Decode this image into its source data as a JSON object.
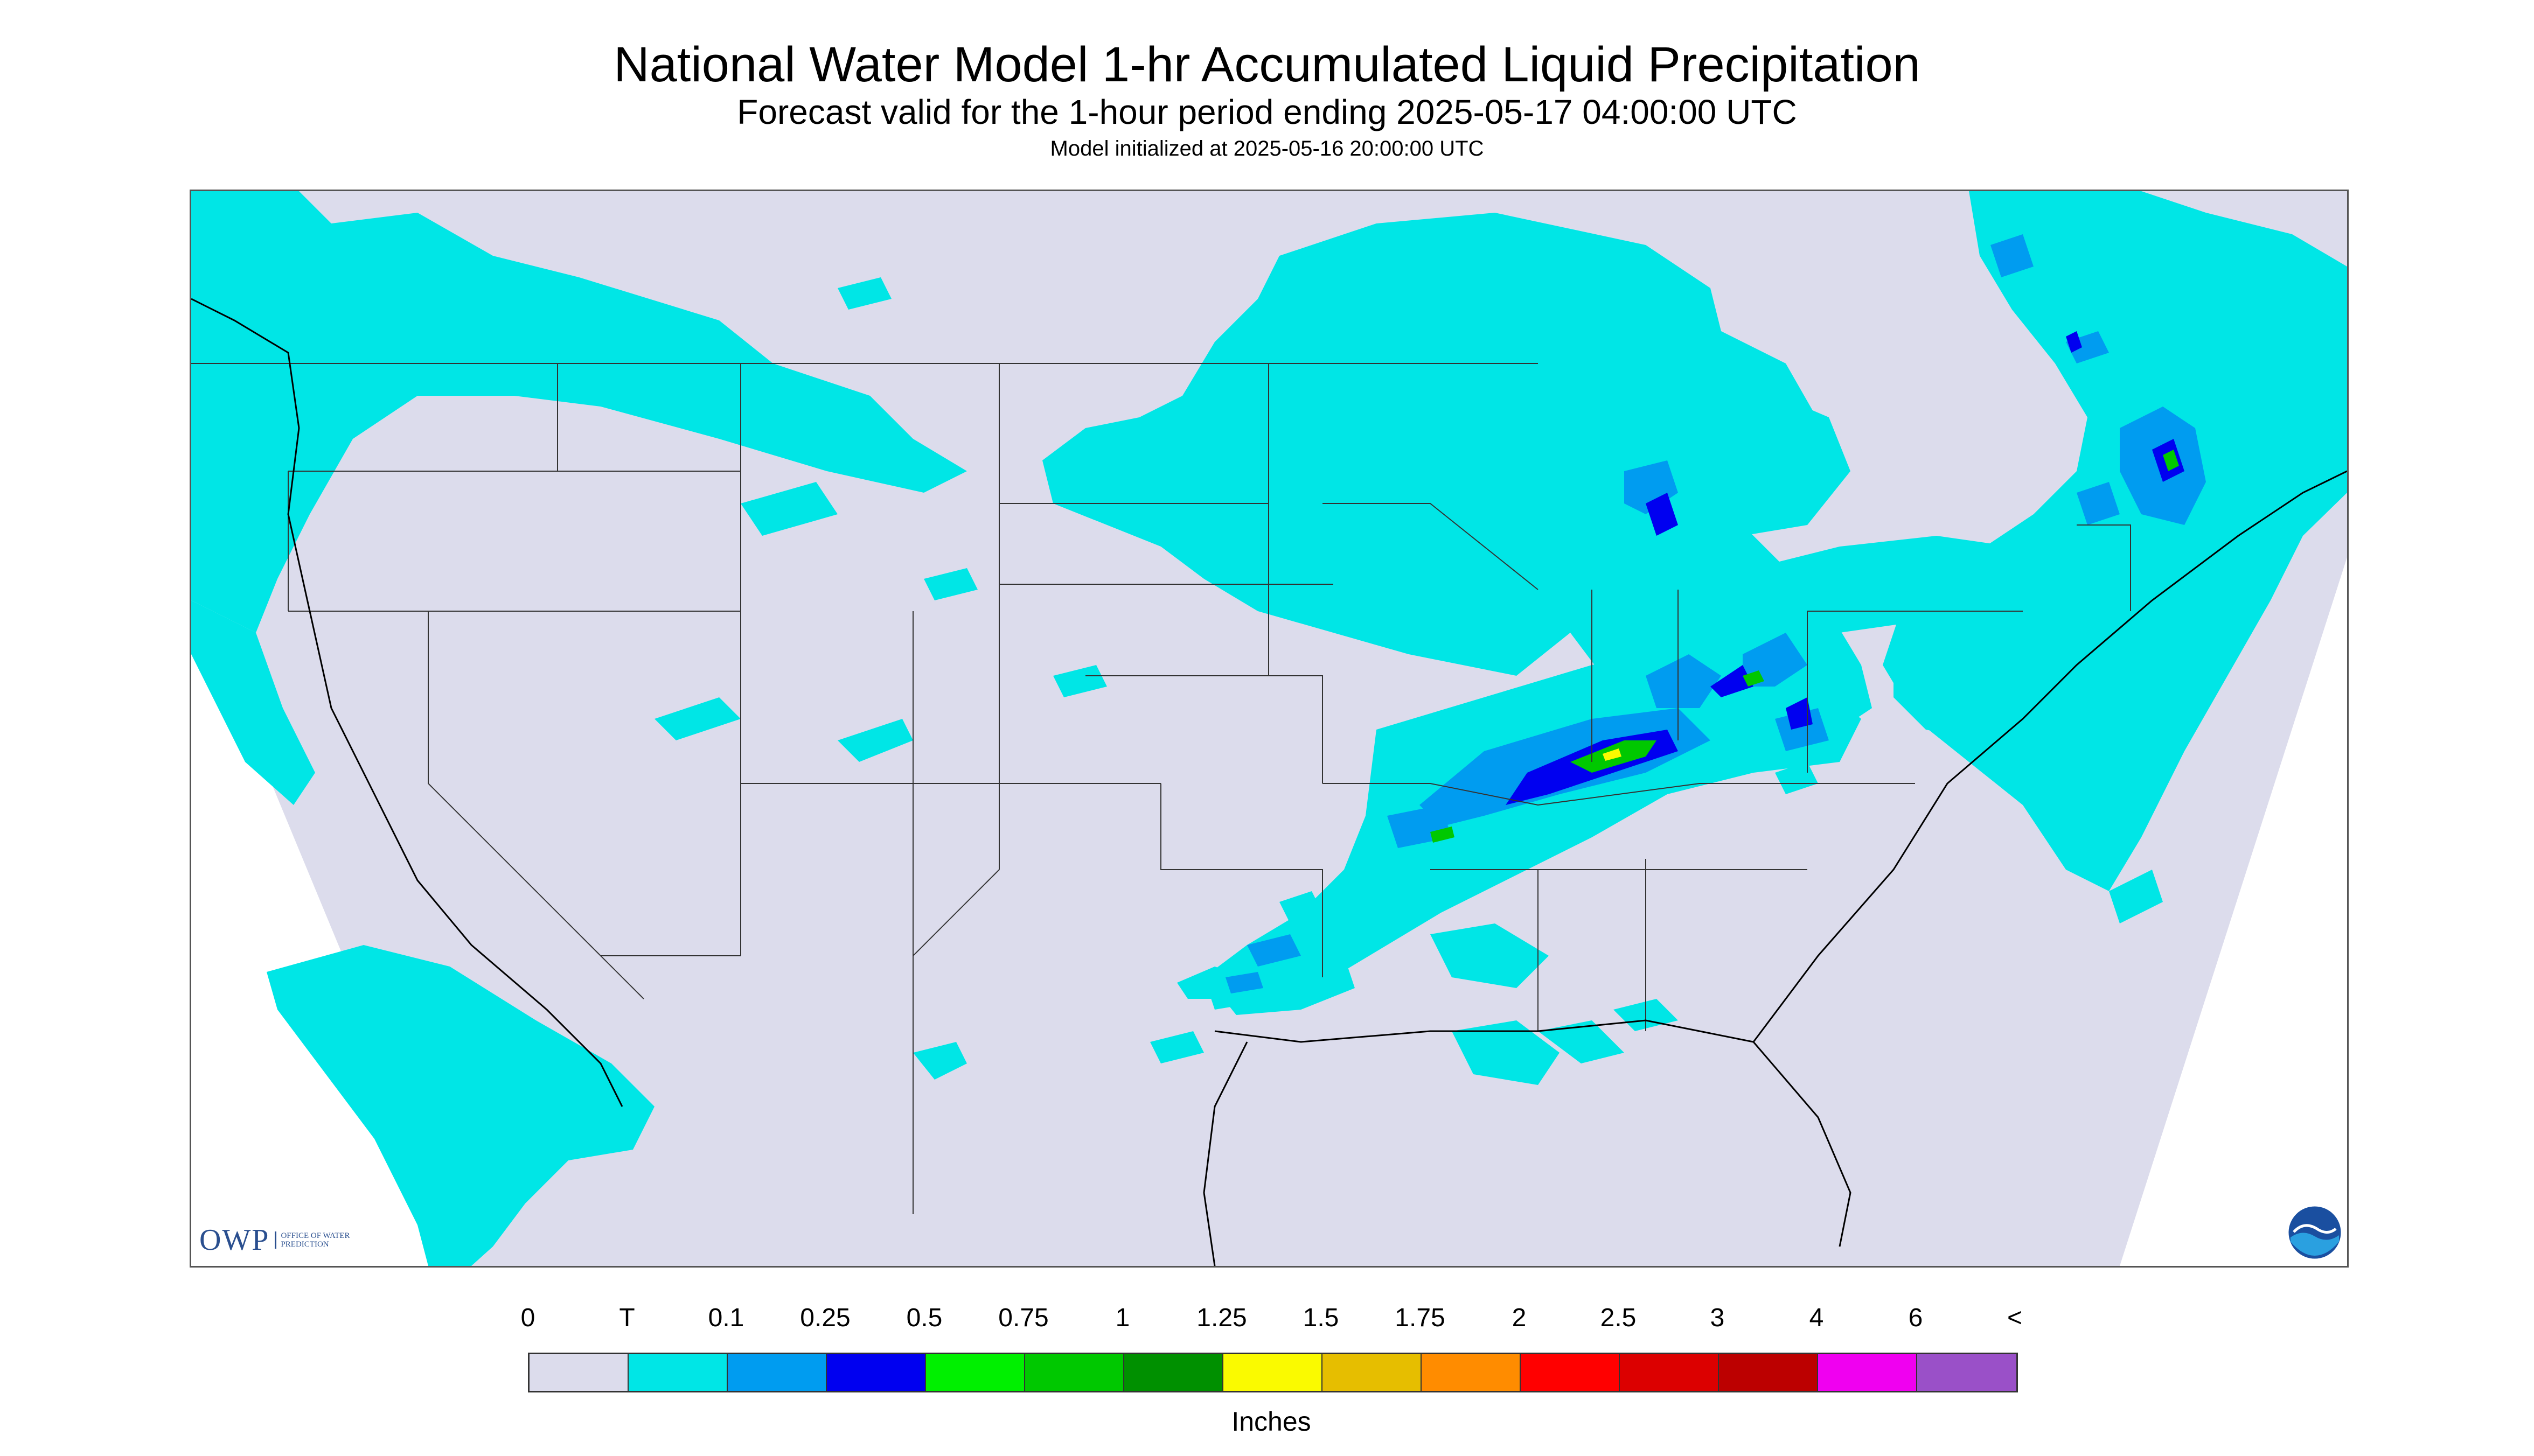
{
  "header": {
    "title": "National Water Model 1-hr Accumulated Liquid Precipitation",
    "subtitle": "Forecast valid for the 1-hour period ending 2025-05-17 04:00:00 UTC",
    "init": "Model initialized at 2025-05-16 20:00:00 UTC"
  },
  "logos": {
    "owp_mark": "OWP",
    "owp_sub": "OFFICE OF WATER PREDICTION",
    "noaa": "NOAA"
  },
  "legend": {
    "ticks": [
      "0",
      "T",
      "0.1",
      "0.25",
      "0.5",
      "0.75",
      "1",
      "1.25",
      "1.5",
      "1.75",
      "2",
      "2.5",
      "3",
      "4",
      "6",
      "<"
    ],
    "colors": [
      "#dcdcec",
      "#00e6e6",
      "#009cf0",
      "#0000f0",
      "#00f000",
      "#00c800",
      "#009000",
      "#fafa00",
      "#e6be00",
      "#ff8c00",
      "#ff0000",
      "#dc0000",
      "#bc0000",
      "#f000f0",
      "#9a50c8"
    ],
    "unit_label": "Inches"
  },
  "colors": {
    "background": "#dcdcec",
    "trace": "#00e6e6",
    "light_blue": "#009cf0",
    "blue": "#0000f0",
    "green": "#00c800",
    "yellow": "#fafa00",
    "outside_domain": "#ffffff"
  }
}
